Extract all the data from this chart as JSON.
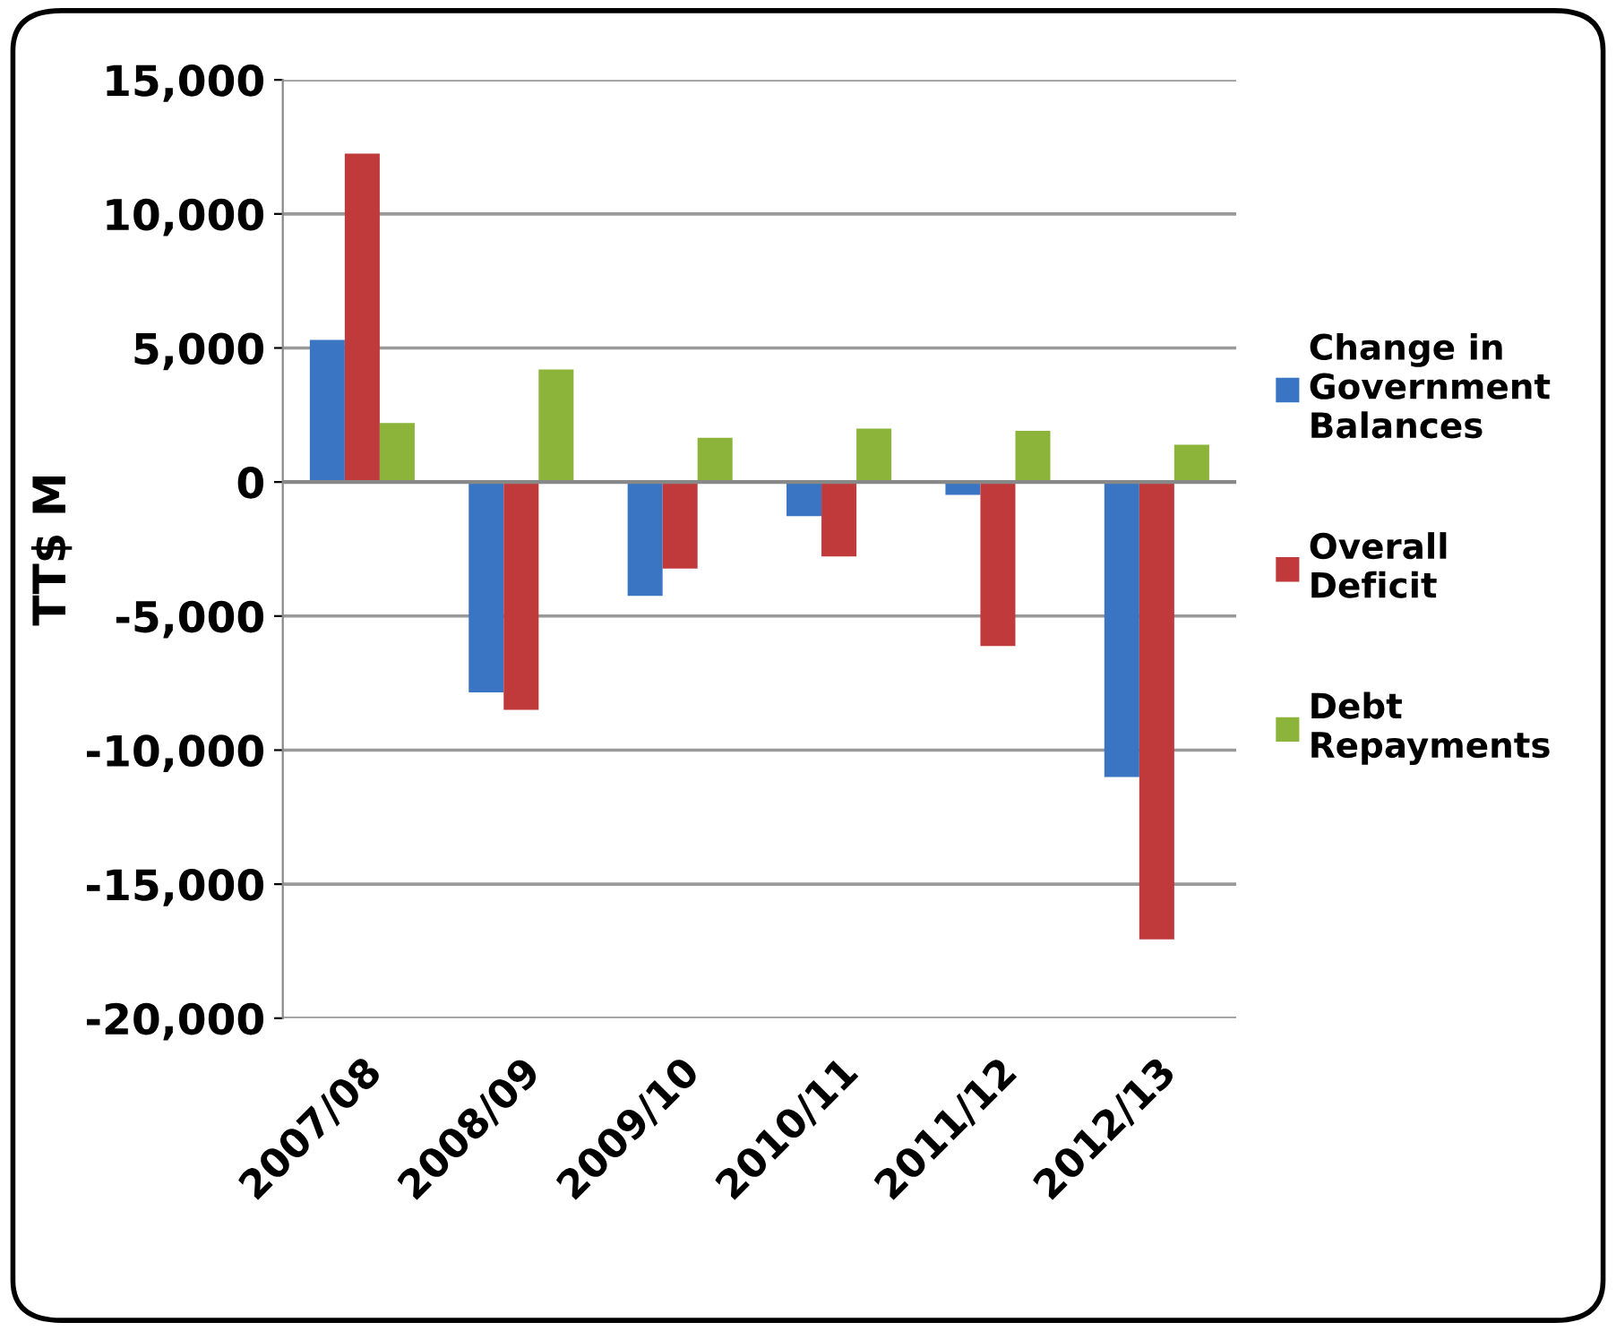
{
  "chart_data": {
    "type": "bar",
    "ylabel": "TT$ M",
    "categories": [
      "2007/08",
      "2008/09",
      "2009/10",
      "2010/11",
      "2011/12",
      "2012/13"
    ],
    "series": [
      {
        "name": "Change in Government Balances",
        "color": "#3a75c4",
        "values": [
          5300,
          -7850,
          -4250,
          -1270,
          -480,
          -11000
        ]
      },
      {
        "name": "Overall Deficit",
        "color": "#c0393b",
        "values": [
          12250,
          -8500,
          -3230,
          -2780,
          -6120,
          -17060
        ]
      },
      {
        "name": "Debt Repayments",
        "color": "#8db43a",
        "values": [
          2200,
          4200,
          1650,
          1990,
          1910,
          1390
        ]
      }
    ],
    "ylim": [
      -20000,
      15000
    ],
    "yticks": [
      {
        "value": -20000,
        "label": "-20,000"
      },
      {
        "value": -15000,
        "label": "-15,000"
      },
      {
        "value": -10000,
        "label": "-10,000"
      },
      {
        "value": -5000,
        "label": "-5,000"
      },
      0,
      {
        "value": 5000,
        "label": "5,000"
      },
      {
        "value": 10000,
        "label": "10,000"
      },
      {
        "value": 15000,
        "label": "15,000"
      }
    ],
    "grid": "y",
    "legend": "right"
  }
}
